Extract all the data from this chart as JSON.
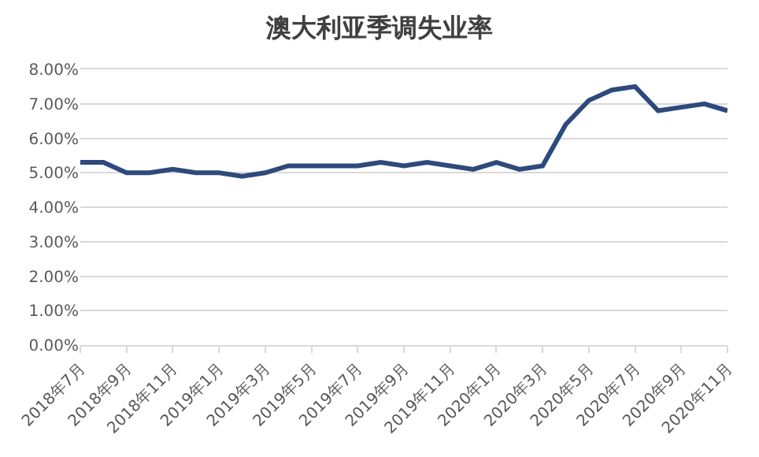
{
  "chart_data": {
    "type": "line",
    "title": "澳大利亚季调失业率",
    "categories": [
      "2018年7月",
      null,
      "2018年9月",
      null,
      "2018年11月",
      null,
      "2019年1月",
      null,
      "2019年3月",
      null,
      "2019年5月",
      null,
      "2019年7月",
      null,
      "2019年9月",
      null,
      "2019年11月",
      null,
      "2020年1月",
      null,
      "2020年3月",
      null,
      "2020年5月",
      null,
      "2020年7月",
      null,
      "2020年9月",
      null,
      "2020年11月"
    ],
    "series": [
      {
        "color": "#2e4a7d",
        "values": [
          5.3,
          5.3,
          5.0,
          5.0,
          5.1,
          5.0,
          5.0,
          4.9,
          5.0,
          5.2,
          5.2,
          5.2,
          5.2,
          5.3,
          5.2,
          5.3,
          5.2,
          5.1,
          5.3,
          5.1,
          5.2,
          6.4,
          7.1,
          7.4,
          7.5,
          6.8,
          6.9,
          7.0,
          6.8
        ]
      }
    ],
    "ylim": [
      0,
      8
    ],
    "yticks": [
      {
        "value": 0,
        "label": "0.00%"
      },
      {
        "value": 1,
        "label": "1.00%"
      },
      {
        "value": 2,
        "label": "2.00%"
      },
      {
        "value": 3,
        "label": "3.00%"
      },
      {
        "value": 4,
        "label": "4.00%"
      },
      {
        "value": 5,
        "label": "5.00%"
      },
      {
        "value": 6,
        "label": "6.00%"
      },
      {
        "value": 7,
        "label": "7.00%"
      },
      {
        "value": 8,
        "label": "8.00%"
      }
    ],
    "grid": "y",
    "marker": "none",
    "line_style": "solid"
  }
}
